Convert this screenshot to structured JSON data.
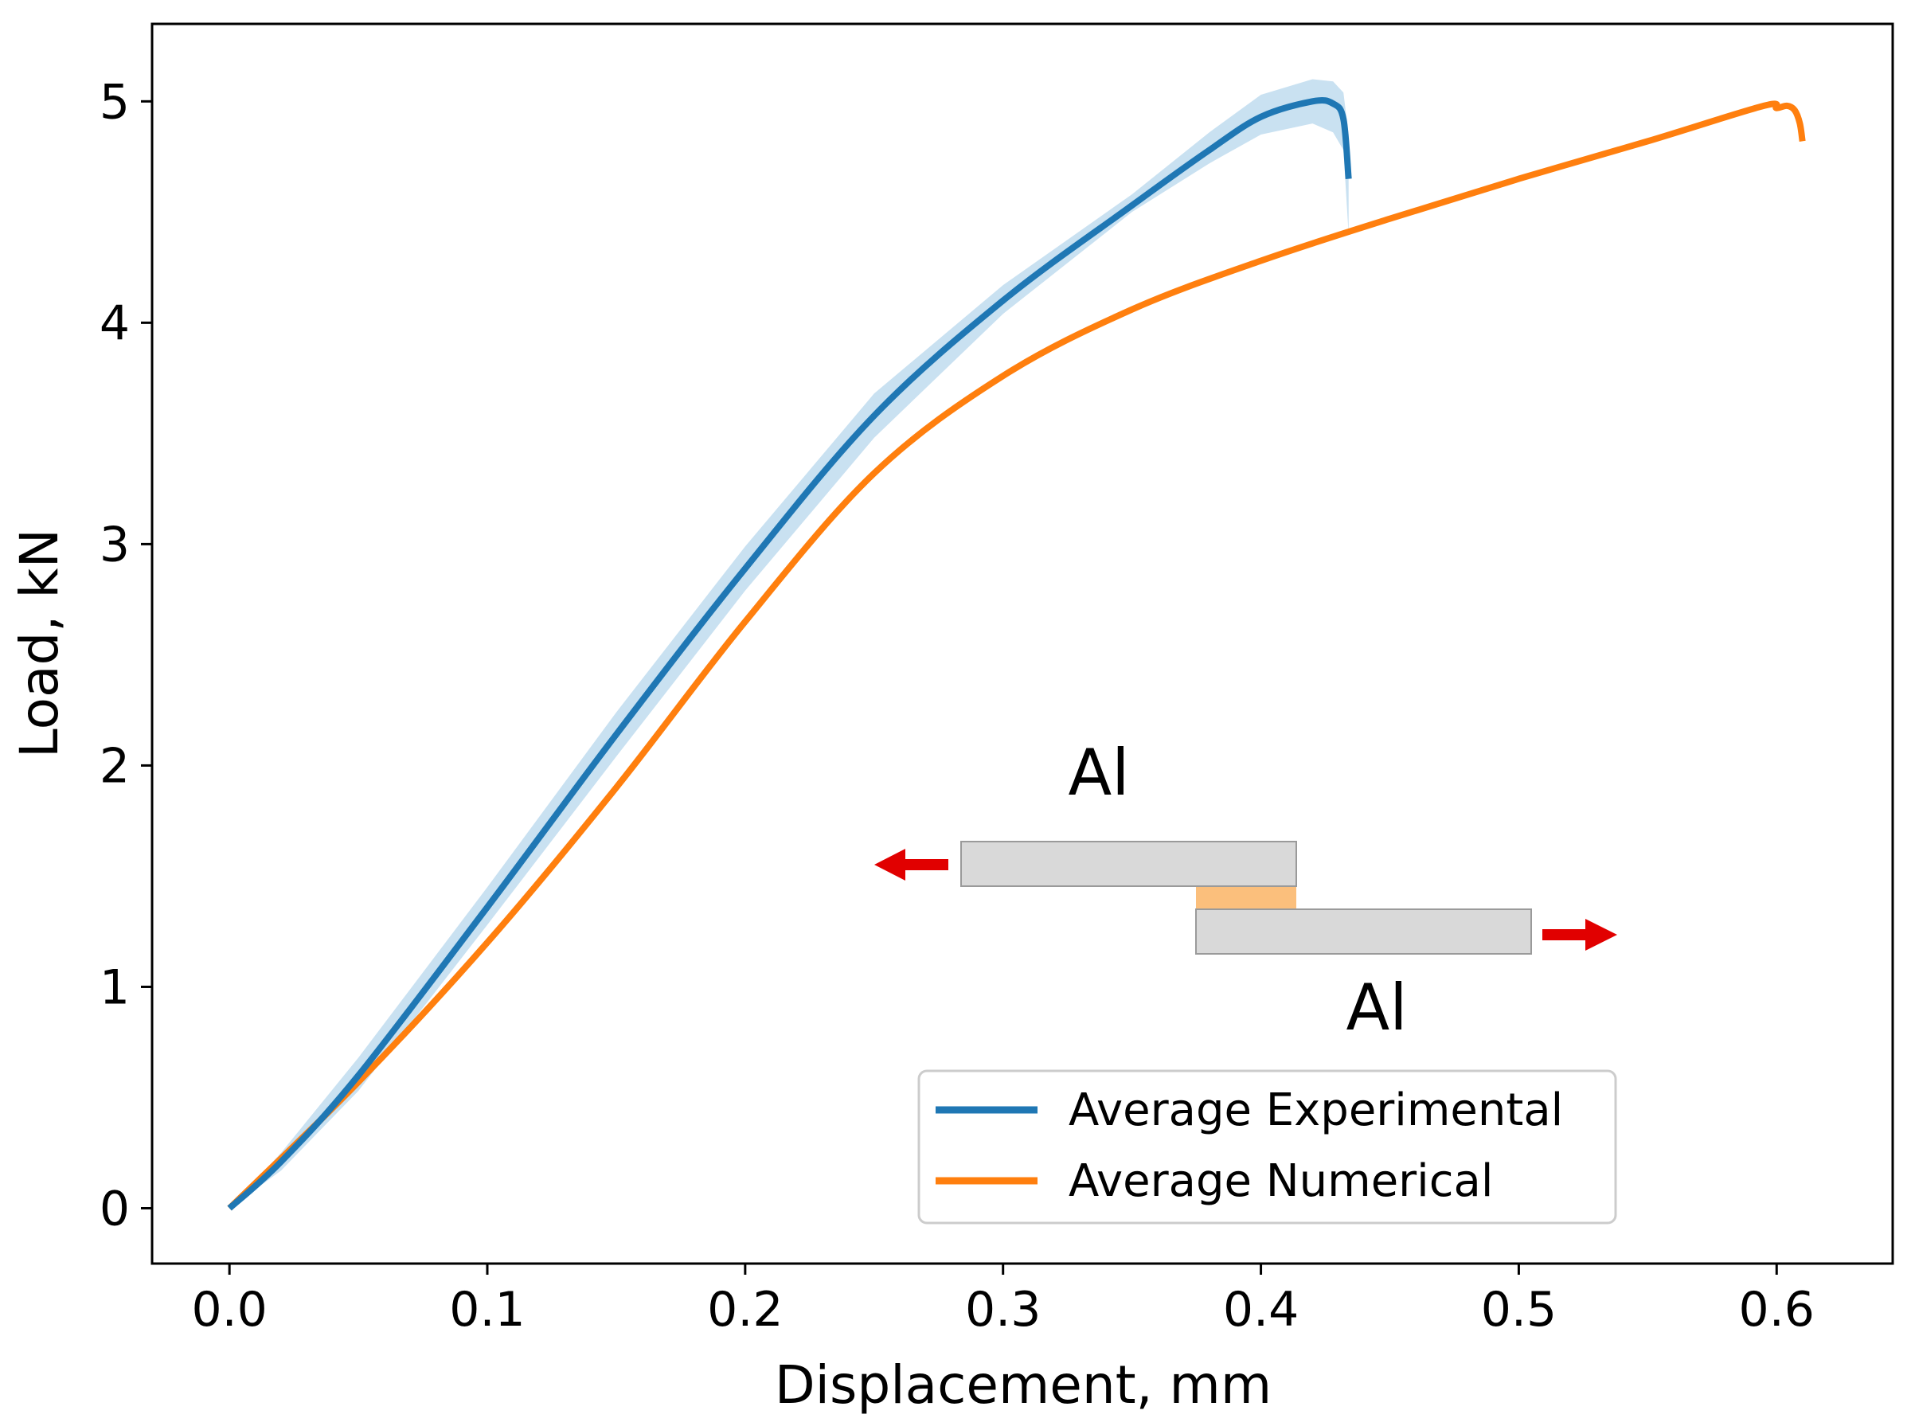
{
  "chart_data": {
    "type": "line",
    "title": "",
    "xlabel": "Displacement, mm",
    "ylabel": "Load, kN",
    "xlim": [
      -0.03,
      0.645
    ],
    "ylim": [
      -0.25,
      5.35
    ],
    "xticks": [
      0.0,
      0.1,
      0.2,
      0.3,
      0.4,
      0.5,
      0.6
    ],
    "xtick_labels": [
      "0.0",
      "0.1",
      "0.2",
      "0.3",
      "0.4",
      "0.5",
      "0.6"
    ],
    "yticks": [
      0,
      1,
      2,
      3,
      4,
      5
    ],
    "ytick_labels": [
      "0",
      "1",
      "2",
      "3",
      "4",
      "5"
    ],
    "grid": false,
    "legend_position": "lower-right",
    "series": [
      {
        "name": "Average Experimental",
        "color": "#1f77b4",
        "band_color": "#c6dff0",
        "x": [
          0.0,
          0.02,
          0.05,
          0.1,
          0.15,
          0.2,
          0.25,
          0.3,
          0.35,
          0.38,
          0.4,
          0.42,
          0.428,
          0.432,
          0.434
        ],
        "y": [
          0.0,
          0.21,
          0.6,
          1.36,
          2.14,
          2.89,
          3.58,
          4.1,
          4.53,
          4.78,
          4.93,
          5.0,
          4.99,
          4.92,
          4.65
        ],
        "band_lower": [
          0.0,
          0.17,
          0.53,
          1.28,
          2.04,
          2.79,
          3.48,
          4.04,
          4.5,
          4.72,
          4.85,
          4.9,
          4.86,
          4.78,
          4.4
        ],
        "band_upper": [
          0.0,
          0.25,
          0.68,
          1.45,
          2.24,
          2.99,
          3.68,
          4.17,
          4.58,
          4.86,
          5.03,
          5.1,
          5.09,
          5.04,
          4.85
        ]
      },
      {
        "name": "Average Numerical",
        "color": "#ff7f0e",
        "x": [
          0.0,
          0.05,
          0.1,
          0.15,
          0.2,
          0.25,
          0.3,
          0.35,
          0.4,
          0.45,
          0.5,
          0.55,
          0.595,
          0.6,
          0.604,
          0.607,
          0.609,
          0.61
        ],
        "y": [
          0.0,
          0.57,
          1.2,
          1.9,
          2.65,
          3.32,
          3.76,
          4.06,
          4.28,
          4.47,
          4.65,
          4.82,
          4.98,
          4.97,
          4.98,
          4.96,
          4.9,
          4.82
        ]
      }
    ],
    "annotations": {
      "top_plate_label": "Al",
      "bottom_plate_label": "Al",
      "plate_color": "#d9d9d9",
      "adhesive_color": "#fbbf7c",
      "arrow_color": "#e10000"
    }
  }
}
